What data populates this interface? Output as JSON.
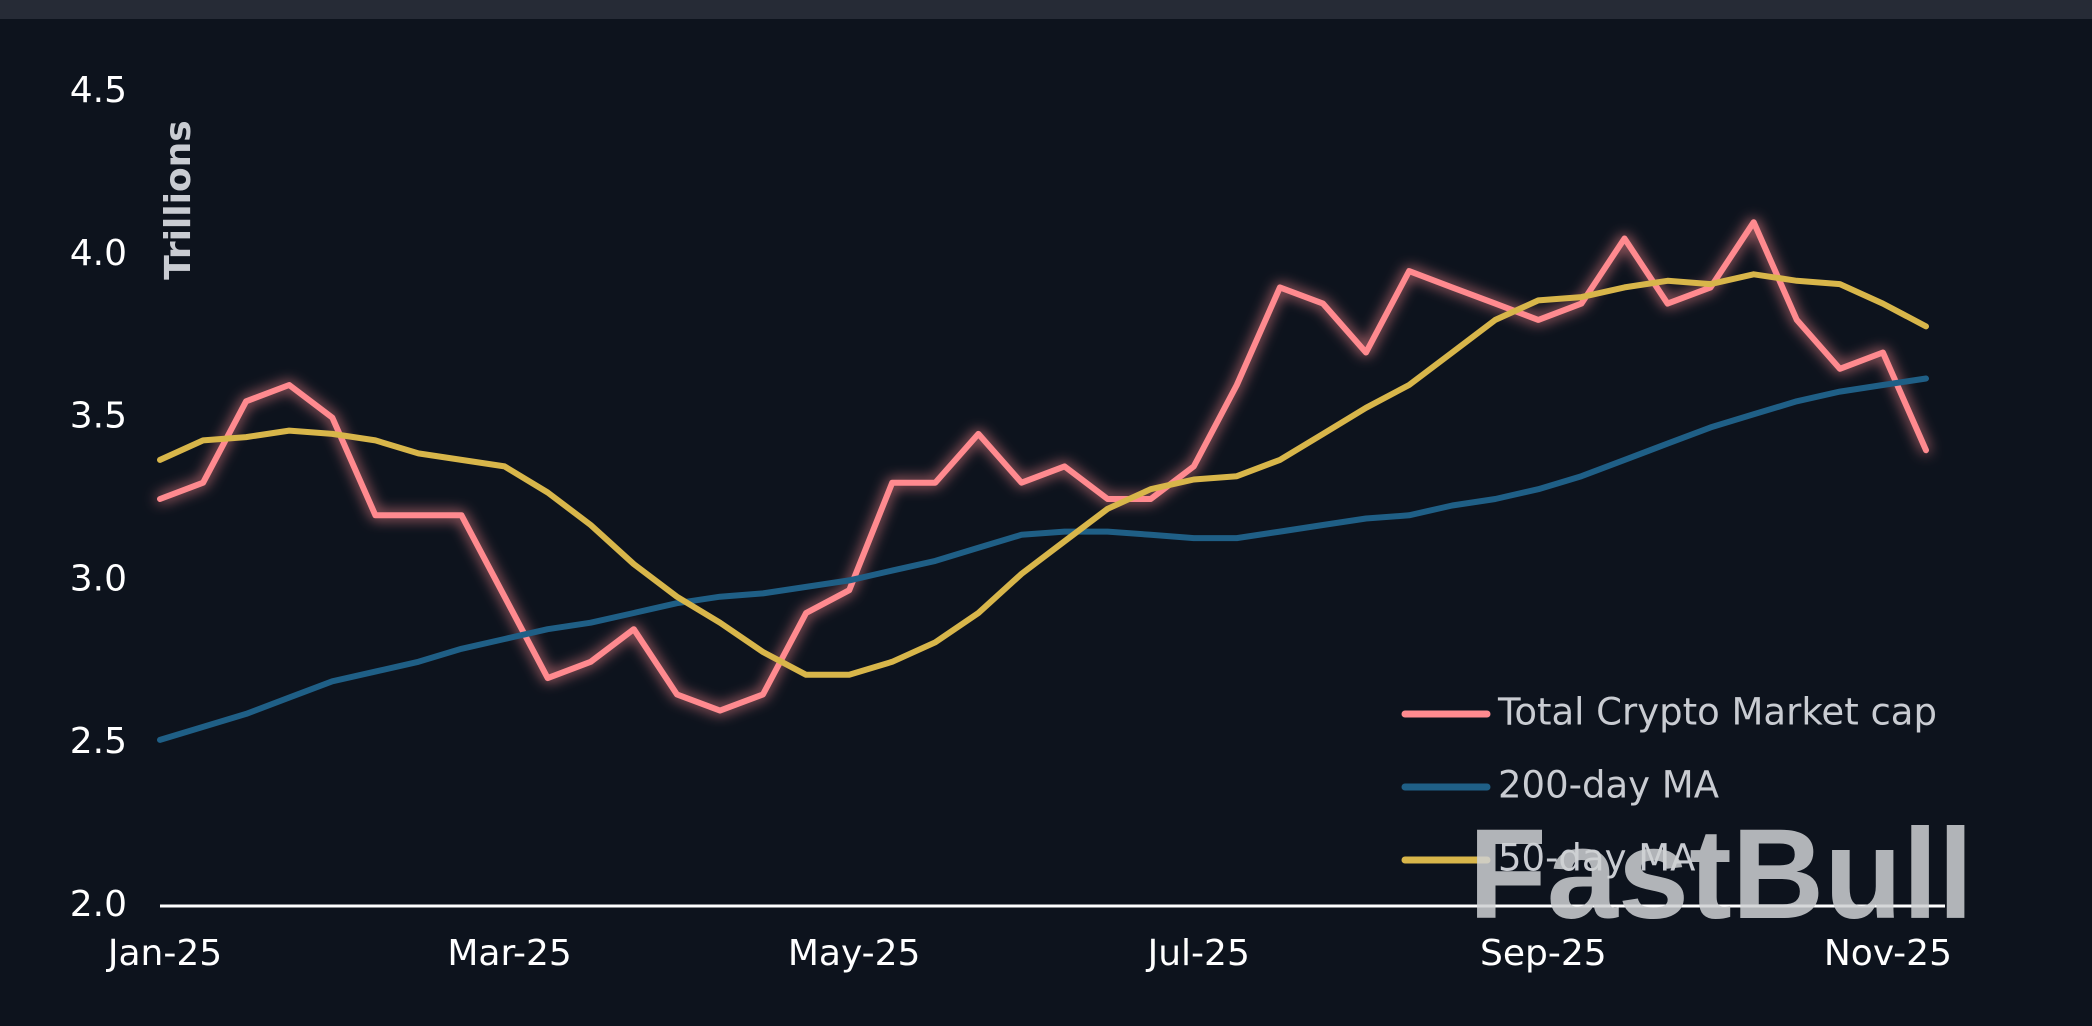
{
  "chart_data": {
    "type": "line",
    "y_label": "Trillions",
    "watermark": "FastBull",
    "categories": [
      "Jan-25",
      null,
      null,
      null,
      null,
      null,
      null,
      null,
      "Mar-25",
      null,
      null,
      null,
      null,
      null,
      null,
      null,
      "May-25",
      null,
      null,
      null,
      null,
      null,
      null,
      null,
      "Jul-25",
      null,
      null,
      null,
      null,
      null,
      null,
      null,
      "Sep-25",
      null,
      null,
      null,
      null,
      null,
      null,
      null,
      "Nov-25",
      null
    ],
    "series": [
      {
        "name": "Total Crypto Market cap",
        "color": "#ff8a8f",
        "glow": true,
        "values": [
          3.25,
          3.3,
          3.55,
          3.6,
          3.5,
          3.2,
          3.2,
          3.2,
          2.95,
          2.7,
          2.75,
          2.85,
          2.65,
          2.6,
          2.65,
          2.9,
          2.97,
          3.3,
          3.3,
          3.45,
          3.3,
          3.35,
          3.25,
          3.25,
          3.35,
          3.6,
          3.9,
          3.85,
          3.7,
          3.95,
          3.9,
          3.85,
          3.8,
          3.85,
          4.05,
          3.85,
          3.9,
          4.1,
          3.8,
          3.65,
          3.7,
          3.4
        ]
      },
      {
        "name": "200-day MA",
        "color": "#1f5f86",
        "values": [
          2.51,
          2.55,
          2.59,
          2.64,
          2.69,
          2.72,
          2.75,
          2.79,
          2.82,
          2.85,
          2.87,
          2.9,
          2.93,
          2.95,
          2.96,
          2.98,
          3.0,
          3.03,
          3.06,
          3.1,
          3.14,
          3.15,
          3.15,
          3.14,
          3.13,
          3.13,
          3.15,
          3.17,
          3.19,
          3.2,
          3.23,
          3.25,
          3.28,
          3.32,
          3.37,
          3.42,
          3.47,
          3.51,
          3.55,
          3.58,
          3.6,
          3.62
        ]
      },
      {
        "name": "50-day MA",
        "color": "#d8b64a",
        "values": [
          3.37,
          3.43,
          3.44,
          3.46,
          3.45,
          3.43,
          3.39,
          3.37,
          3.35,
          3.27,
          3.17,
          3.05,
          2.95,
          2.87,
          2.78,
          2.71,
          2.71,
          2.75,
          2.81,
          2.9,
          3.02,
          3.12,
          3.22,
          3.28,
          3.31,
          3.32,
          3.37,
          3.45,
          3.53,
          3.6,
          3.7,
          3.8,
          3.86,
          3.87,
          3.9,
          3.92,
          3.91,
          3.94,
          3.92,
          3.91,
          3.85,
          3.78
        ]
      }
    ],
    "ylim": [
      2,
      4.5
    ],
    "yticks": [
      {
        "value": 2,
        "label": "2.0"
      },
      2.5,
      {
        "value": 3,
        "label": "3.0"
      },
      3.5,
      {
        "value": 4,
        "label": "4.0"
      },
      4.5
    ],
    "legend": "lower-right"
  }
}
